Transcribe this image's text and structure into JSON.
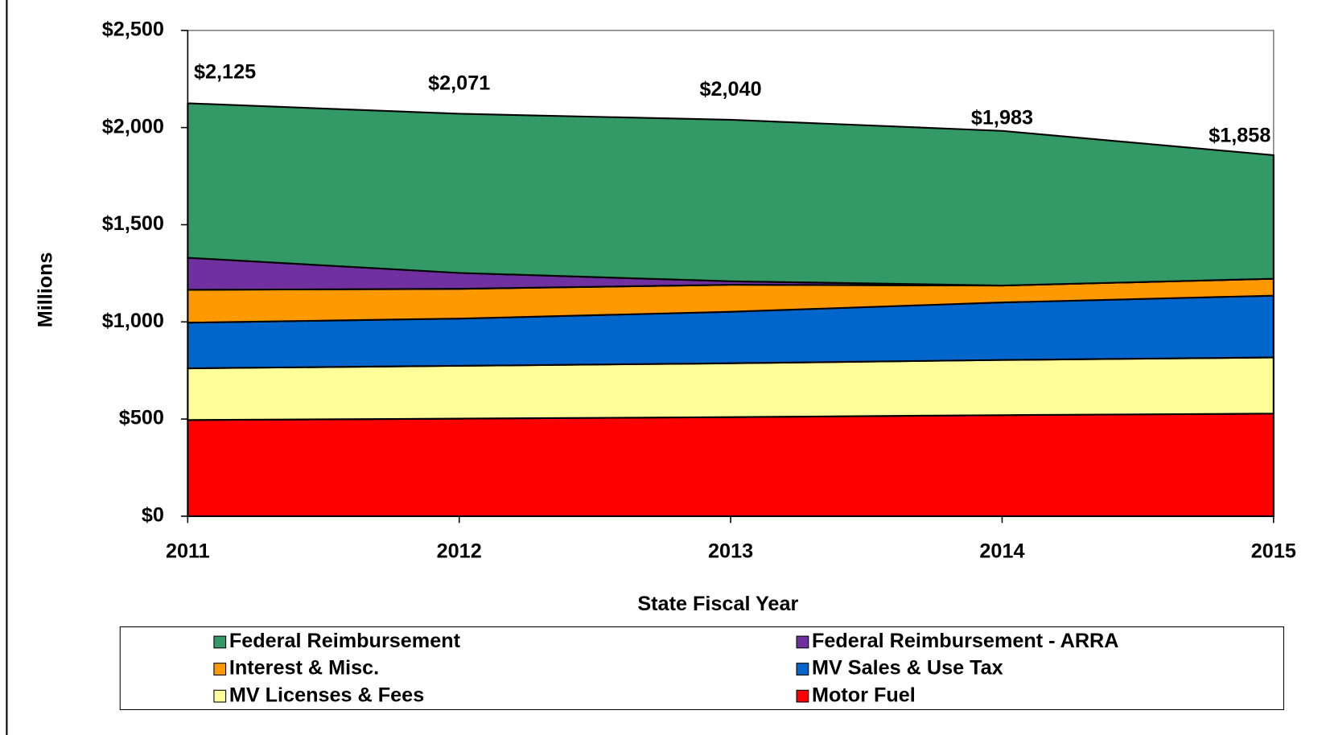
{
  "chart_data": {
    "type": "stacked_area",
    "x_label": "State Fiscal Year",
    "y_label": "Millions",
    "categories": [
      "2011",
      "2012",
      "2013",
      "2014",
      "2015"
    ],
    "series": [
      {
        "name": "Federal Reimbursement",
        "color": "#339966",
        "values": [
          795,
          819,
          831,
          796,
          636
        ]
      },
      {
        "name": "Federal Reimbursement - ARRA",
        "color": "#7030a0",
        "values": [
          165,
          82,
          18,
          0,
          0
        ]
      },
      {
        "name": "Interest & Misc.",
        "color": "#ff9900",
        "values": [
          169,
          153,
          139,
          87,
          87
        ]
      },
      {
        "name": "MV Sales & Use Tax",
        "color": "#0066cc",
        "values": [
          235,
          243,
          265,
          296,
          318
        ]
      },
      {
        "name": "MV Licenses & Fees",
        "color": "#ffff99",
        "values": [
          266,
          272,
          277,
          284,
          289
        ]
      },
      {
        "name": "Motor Fuel",
        "color": "#ff0000",
        "values": [
          495,
          502,
          510,
          520,
          528
        ]
      }
    ],
    "totals": {
      "values": [
        2125,
        2071,
        2040,
        1983,
        1858
      ],
      "value_labels": [
        "$2,125",
        "$2,071",
        "$2,040",
        "$1,983",
        "$1,858"
      ]
    },
    "ylim": [
      0,
      2500
    ],
    "yticks": [
      {
        "value": 0,
        "label": "$0"
      },
      {
        "value": 500,
        "label": "$500"
      },
      {
        "value": 1000,
        "label": "$1,000"
      },
      {
        "value": 1500,
        "label": "$1,500"
      },
      {
        "value": 2000,
        "label": "$2,000"
      },
      {
        "value": 2500,
        "label": "$2,500"
      }
    ],
    "legend": "bottom"
  }
}
